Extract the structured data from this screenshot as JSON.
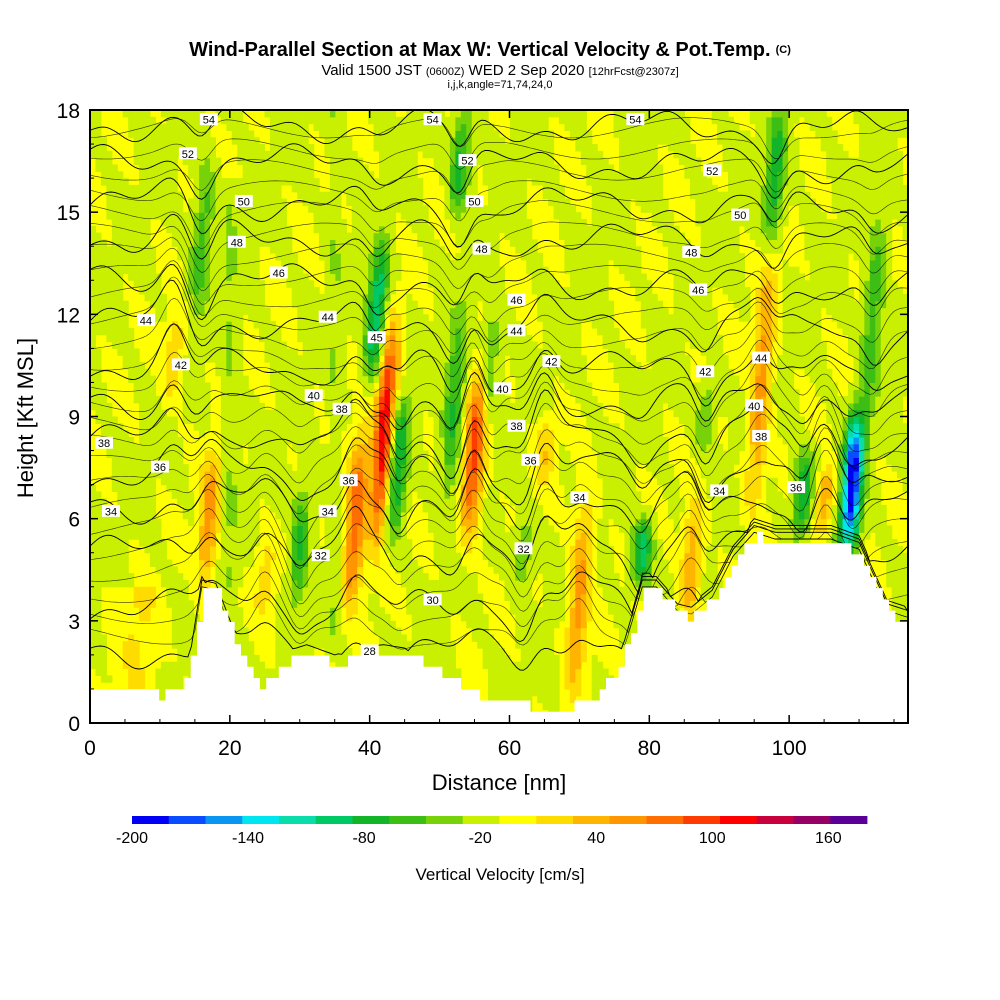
{
  "chart_data": {
    "type": "heatmap",
    "title": "Wind-Parallel Section at Max W: Vertical Velocity & Pot.Temp.",
    "title_mark": "(C)",
    "subtitle": {
      "prefix": "Valid 1500 JST",
      "utc": "(0600Z)",
      "date": "WED 2 Sep 2020",
      "run": "[12hrFcst@2307z]"
    },
    "indices": "i,j,k,angle=71,74,24,0",
    "xlabel": "Distance [nm]",
    "ylabel": "Height [Kft MSL]",
    "xlim": [
      0,
      117
    ],
    "ylim": [
      0,
      18
    ],
    "x_ticks": [
      "0",
      "20",
      "40",
      "60",
      "80",
      "100"
    ],
    "y_ticks": [
      "0",
      "3",
      "6",
      "9",
      "12",
      "15",
      "18"
    ],
    "colorbar": {
      "label": "Vertical Velocity [cm/s]",
      "min": -200,
      "max": 180,
      "step": 20,
      "tick_labels": [
        "-200",
        "-140",
        "-80",
        "-20",
        "40",
        "100",
        "160"
      ],
      "colors": [
        "#0000f5",
        "#0a4cff",
        "#0a96f0",
        "#00e6f0",
        "#0adcaa",
        "#00c864",
        "#14b428",
        "#3cbe14",
        "#78d20a",
        "#c8f000",
        "#ffff00",
        "#ffdc00",
        "#ffb400",
        "#ff9600",
        "#ff6e00",
        "#ff3c00",
        "#ff0000",
        "#c8003c",
        "#960064",
        "#5a0096"
      ]
    },
    "terrain": [
      [
        0,
        1.0
      ],
      [
        8,
        1.0
      ],
      [
        10,
        0.8
      ],
      [
        14,
        1.3
      ],
      [
        16,
        3.9
      ],
      [
        18,
        3.8
      ],
      [
        21,
        2.2
      ],
      [
        24,
        1.1
      ],
      [
        28,
        1.8
      ],
      [
        31,
        2.0
      ],
      [
        35,
        1.7
      ],
      [
        38,
        1.9
      ],
      [
        42,
        2.0
      ],
      [
        48,
        1.8
      ],
      [
        52,
        1.2
      ],
      [
        56,
        0.8
      ],
      [
        60,
        0.6
      ],
      [
        64,
        0.4
      ],
      [
        68,
        0.4
      ],
      [
        72,
        0.7
      ],
      [
        76,
        1.8
      ],
      [
        79,
        3.9
      ],
      [
        81,
        3.9
      ],
      [
        84,
        3.2
      ],
      [
        86,
        3.1
      ],
      [
        89,
        3.6
      ],
      [
        92,
        4.8
      ],
      [
        95,
        5.5
      ],
      [
        98,
        5.3
      ],
      [
        101,
        5.3
      ],
      [
        103,
        5.3
      ],
      [
        106,
        5.3
      ],
      [
        110,
        5.0
      ],
      [
        114,
        3.2
      ],
      [
        117,
        3.0
      ]
    ],
    "updrafts": [
      {
        "x": 42,
        "z0": 5.5,
        "z1": 11.5,
        "w": 140
      },
      {
        "x": 38,
        "z0": 3.5,
        "z1": 8.5,
        "w": 100
      },
      {
        "x": 55,
        "z0": 5.5,
        "z1": 10.5,
        "w": 110
      },
      {
        "x": 17,
        "z0": 4.0,
        "z1": 8.0,
        "w": 70
      },
      {
        "x": 12,
        "z0": 9.5,
        "z1": 12.0,
        "w": 40
      },
      {
        "x": 70,
        "z0": 1.0,
        "z1": 6.5,
        "w": 70
      },
      {
        "x": 86,
        "z0": 3.0,
        "z1": 6.5,
        "w": 60
      },
      {
        "x": 96,
        "z0": 6.5,
        "z1": 13.5,
        "w": 70
      },
      {
        "x": 105,
        "z0": 5.5,
        "z1": 7.5,
        "w": 60
      },
      {
        "x": 25,
        "z0": 3.0,
        "z1": 5.5,
        "w": 30
      },
      {
        "x": 65,
        "z0": 7.0,
        "z1": 9.0,
        "w": 40
      }
    ],
    "downdrafts": [
      {
        "x": 41,
        "z0": 10.0,
        "z1": 14.0,
        "w": -100
      },
      {
        "x": 44,
        "z0": 5.5,
        "z1": 9.5,
        "w": -80
      },
      {
        "x": 53,
        "z0": 15.0,
        "z1": 18.0,
        "w": -70
      },
      {
        "x": 52,
        "z0": 6.5,
        "z1": 12.0,
        "w": -60
      },
      {
        "x": 57,
        "z0": 9.0,
        "z1": 12.0,
        "w": -50
      },
      {
        "x": 79,
        "z0": 4.0,
        "z1": 6.0,
        "w": -90
      },
      {
        "x": 98,
        "z0": 14.0,
        "z1": 18.0,
        "w": -70
      },
      {
        "x": 102,
        "z0": 5.5,
        "z1": 8.0,
        "w": -80
      },
      {
        "x": 109,
        "z0": 5.0,
        "z1": 9.0,
        "w": -190
      },
      {
        "x": 112,
        "z0": 9.0,
        "z1": 15.0,
        "w": -50
      },
      {
        "x": 30,
        "z0": 3.5,
        "z1": 7.0,
        "w": -60
      },
      {
        "x": 16,
        "z0": 12.0,
        "z1": 16.5,
        "w": -50
      },
      {
        "x": 88,
        "z0": 8.0,
        "z1": 10.0,
        "w": -40
      },
      {
        "x": 62,
        "z0": 4.0,
        "z1": 6.0,
        "w": -40
      }
    ],
    "theta_contours": [
      {
        "level": 28,
        "base_z": 2.1
      },
      {
        "level": 30,
        "base_z": 3.4
      },
      {
        "level": 32,
        "base_z": 5.0
      },
      {
        "level": 34,
        "base_z": 6.3
      },
      {
        "level": 36,
        "base_z": 7.3
      },
      {
        "level": 38,
        "base_z": 8.3
      },
      {
        "level": 40,
        "base_z": 9.3
      },
      {
        "level": 42,
        "base_z": 10.5
      },
      {
        "level": 44,
        "base_z": 11.8
      },
      {
        "level": 46,
        "base_z": 13.0
      },
      {
        "level": 48,
        "base_z": 14.3
      },
      {
        "level": 50,
        "base_z": 15.3
      },
      {
        "level": 52,
        "base_z": 16.5
      },
      {
        "level": 54,
        "base_z": 17.6
      }
    ],
    "contour_labels": [
      {
        "text": "54",
        "x": 17,
        "z": 17.7
      },
      {
        "text": "54",
        "x": 49,
        "z": 17.7
      },
      {
        "text": "54",
        "x": 78,
        "z": 17.7
      },
      {
        "text": "52",
        "x": 14,
        "z": 16.7
      },
      {
        "text": "52",
        "x": 54,
        "z": 16.5
      },
      {
        "text": "52",
        "x": 89,
        "z": 16.2
      },
      {
        "text": "50",
        "x": 22,
        "z": 15.3
      },
      {
        "text": "50",
        "x": 55,
        "z": 15.3
      },
      {
        "text": "50",
        "x": 93,
        "z": 14.9
      },
      {
        "text": "48",
        "x": 21,
        "z": 14.1
      },
      {
        "text": "48",
        "x": 56,
        "z": 13.9
      },
      {
        "text": "48",
        "x": 86,
        "z": 13.8
      },
      {
        "text": "46",
        "x": 27,
        "z": 13.2
      },
      {
        "text": "46",
        "x": 61,
        "z": 12.4
      },
      {
        "text": "46",
        "x": 87,
        "z": 12.7
      },
      {
        "text": "44",
        "x": 8,
        "z": 11.8
      },
      {
        "text": "44",
        "x": 34,
        "z": 11.9
      },
      {
        "text": "44",
        "x": 61,
        "z": 11.5
      },
      {
        "text": "44",
        "x": 96,
        "z": 10.7
      },
      {
        "text": "42",
        "x": 13,
        "z": 10.5
      },
      {
        "text": "42",
        "x": 66,
        "z": 10.6
      },
      {
        "text": "42",
        "x": 88,
        "z": 10.3
      },
      {
        "text": "40",
        "x": 32,
        "z": 9.6
      },
      {
        "text": "40",
        "x": 59,
        "z": 9.8
      },
      {
        "text": "40",
        "x": 95,
        "z": 9.3
      },
      {
        "text": "38",
        "x": 2,
        "z": 8.2
      },
      {
        "text": "38",
        "x": 36,
        "z": 9.2
      },
      {
        "text": "38",
        "x": 61,
        "z": 8.7
      },
      {
        "text": "38",
        "x": 96,
        "z": 8.4
      },
      {
        "text": "36",
        "x": 10,
        "z": 7.5
      },
      {
        "text": "36",
        "x": 37,
        "z": 7.1
      },
      {
        "text": "36",
        "x": 63,
        "z": 7.7
      },
      {
        "text": "36",
        "x": 101,
        "z": 6.9
      },
      {
        "text": "34",
        "x": 3,
        "z": 6.2
      },
      {
        "text": "34",
        "x": 34,
        "z": 6.2
      },
      {
        "text": "34",
        "x": 70,
        "z": 6.6
      },
      {
        "text": "34",
        "x": 90,
        "z": 6.8
      },
      {
        "text": "32",
        "x": 33,
        "z": 4.9
      },
      {
        "text": "32",
        "x": 62,
        "z": 5.1
      },
      {
        "text": "30",
        "x": 49,
        "z": 3.6
      },
      {
        "text": "28",
        "x": 40,
        "z": 2.1
      },
      {
        "text": "45",
        "x": 41,
        "z": 11.3
      }
    ]
  }
}
